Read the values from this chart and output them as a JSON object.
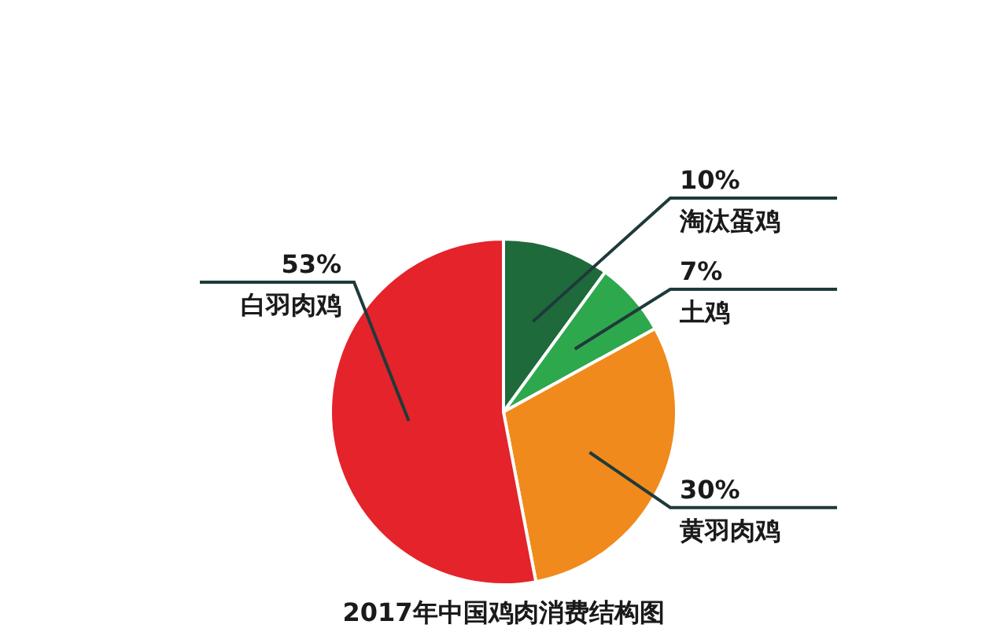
{
  "chart_data": {
    "type": "pie",
    "title": "2017年中国鸡肉消费结构图",
    "categories": [
      "淘汰蛋鸡",
      "土鸡",
      "黄羽肉鸡",
      "白羽肉鸡"
    ],
    "values": [
      10,
      7,
      30,
      53
    ],
    "value_labels": [
      "10%",
      "7%",
      "30%",
      "53%"
    ],
    "colors": [
      "#1e6a3a",
      "#2ea84c",
      "#f08a1c",
      "#e4232b"
    ]
  }
}
